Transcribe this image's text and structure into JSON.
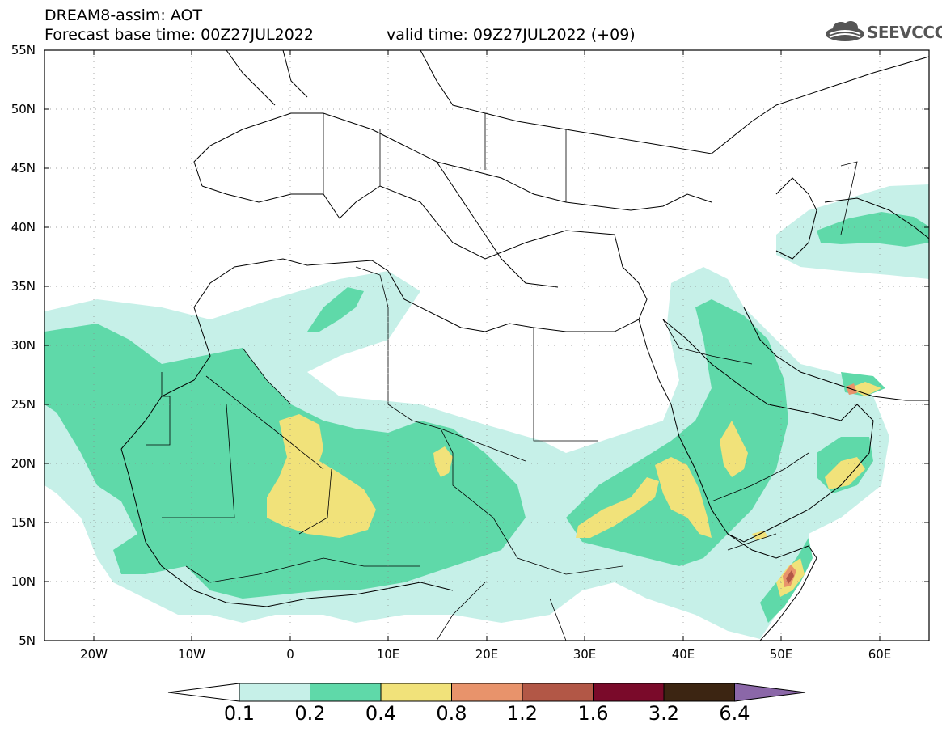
{
  "header": {
    "title": "DREAM8-assim: AOT",
    "base_time": "Forecast base time: 00Z27JUL2022",
    "valid_time": "valid time: 09Z27JUL2022 (+09)",
    "logo_text": "SEEVCCC"
  },
  "map": {
    "lat_labels": [
      "55N",
      "50N",
      "45N",
      "40N",
      "35N",
      "30N",
      "25N",
      "20N",
      "15N",
      "10N",
      "5N"
    ],
    "lon_labels": [
      "20W",
      "10W",
      "0",
      "10E",
      "20E",
      "30E",
      "40E",
      "50E",
      "60E"
    ],
    "lon_range": [
      -25,
      65
    ],
    "lat_range": [
      5,
      55
    ]
  },
  "colorbar": {
    "levels": [
      "0.1",
      "0.2",
      "0.4",
      "0.8",
      "1.2",
      "1.6",
      "3.2",
      "6.4"
    ],
    "colors": [
      "#c6f0e8",
      "#5fd9a9",
      "#f1e27a",
      "#e8936b",
      "#b25746",
      "#7a0a2a",
      "#3c2512",
      "#8b67a8"
    ]
  }
}
